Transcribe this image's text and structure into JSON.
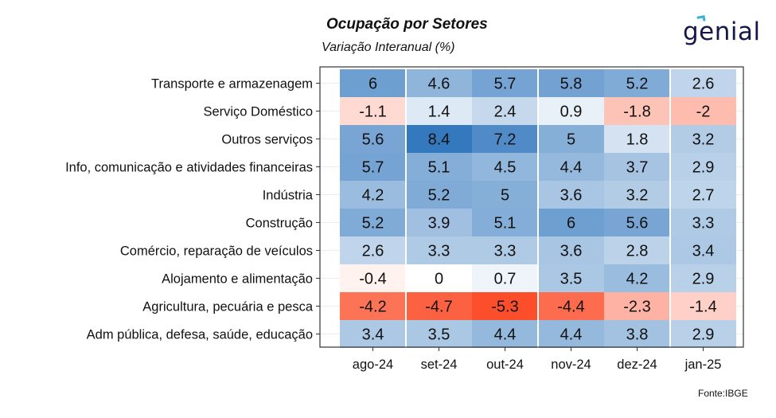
{
  "chart_data": {
    "type": "heatmap",
    "title": "Ocupação por Setores",
    "subtitle": "Variação Interanual (%)",
    "columns": [
      "ago-24",
      "set-24",
      "out-24",
      "nov-24",
      "dez-24",
      "jan-25"
    ],
    "rows": [
      "Transporte e armazenagem",
      "Serviço Doméstico",
      "Outros serviços",
      "Info, comunicação e atividades financeiras",
      "Indústria",
      "Construção",
      "Comércio, reparação de veículos",
      "Alojamento e alimentação",
      "Agricultura, pecuária e pesca",
      "Adm pública, defesa, saúde, educação"
    ],
    "values": [
      [
        6,
        4.6,
        5.7,
        5.8,
        5.2,
        2.6
      ],
      [
        -1.1,
        1.4,
        2.4,
        0.9,
        -1.8,
        -2
      ],
      [
        5.6,
        8.4,
        7.2,
        5,
        1.8,
        3.2
      ],
      [
        5.7,
        5.1,
        4.5,
        4.4,
        3.7,
        2.9
      ],
      [
        4.2,
        5.2,
        5,
        3.6,
        3.2,
        2.7
      ],
      [
        5.2,
        3.9,
        5.1,
        6,
        5.6,
        3.3
      ],
      [
        2.6,
        3.3,
        3.3,
        3.6,
        2.8,
        3.4
      ],
      [
        -0.4,
        0,
        0.7,
        3.5,
        4.2,
        2.9
      ],
      [
        -4.2,
        -4.7,
        -5.3,
        -4.4,
        -2.3,
        -1.4
      ],
      [
        3.4,
        3.5,
        4.4,
        4.4,
        3.8,
        2.9
      ]
    ],
    "color_scale": {
      "negative_max": "#fc4e2a",
      "zero": "#ffffff",
      "positive_max": "#3478be"
    }
  },
  "logo": "genial",
  "source": "Fonte:IBGE"
}
